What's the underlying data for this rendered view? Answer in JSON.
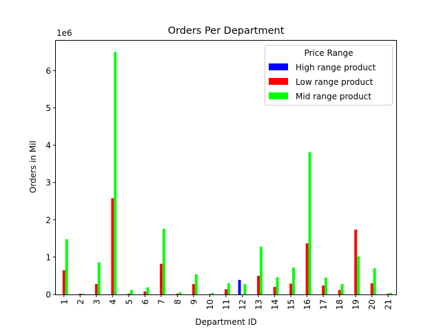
{
  "chart_data": {
    "type": "bar",
    "title": "Orders Per Department",
    "xlabel": "Department ID",
    "ylabel": "Orders in Mil",
    "y_multiplier_label": "1e6",
    "ylim": [
      0,
      6800000
    ],
    "yticks": [
      0,
      1000000,
      2000000,
      3000000,
      4000000,
      5000000,
      6000000
    ],
    "ytick_labels": [
      "0",
      "1",
      "2",
      "3",
      "4",
      "5",
      "6"
    ],
    "categories": [
      "1",
      "2",
      "3",
      "4",
      "5",
      "6",
      "7",
      "8",
      "9",
      "10",
      "11",
      "12",
      "13",
      "14",
      "15",
      "16",
      "17",
      "18",
      "19",
      "20",
      "21"
    ],
    "grid": false,
    "legend": {
      "title": "Price Range",
      "placement": "top-right"
    },
    "series": [
      {
        "name": "High range product",
        "color": "#0000ff",
        "values": [
          0,
          0,
          0,
          0,
          0,
          0,
          0,
          0,
          0,
          0,
          0,
          390000,
          0,
          0,
          0,
          0,
          0,
          0,
          0,
          0,
          0
        ]
      },
      {
        "name": "Low range product",
        "color": "#ff0000",
        "values": [
          650000,
          20000,
          280000,
          2580000,
          20000,
          80000,
          820000,
          20000,
          280000,
          10000,
          140000,
          0,
          500000,
          200000,
          290000,
          1370000,
          240000,
          120000,
          1740000,
          300000,
          20000
        ]
      },
      {
        "name": "Mid range product",
        "color": "#00ff00",
        "values": [
          1480000,
          20000,
          860000,
          6500000,
          120000,
          190000,
          1760000,
          60000,
          540000,
          40000,
          300000,
          280000,
          1280000,
          460000,
          720000,
          3810000,
          450000,
          280000,
          1020000,
          700000,
          40000
        ]
      }
    ]
  }
}
